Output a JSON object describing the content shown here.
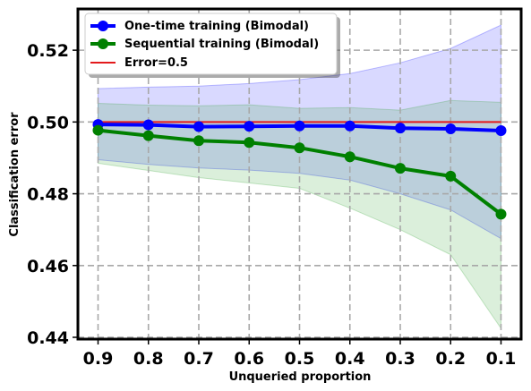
{
  "chart_data": {
    "type": "line",
    "xlabel": "Unqueried proportion",
    "ylabel": "Classification error",
    "x": [
      0.9,
      0.8,
      0.7,
      0.6,
      0.5,
      0.4,
      0.3,
      0.2,
      0.1
    ],
    "x_tick_labels": [
      "0.9",
      "0.8",
      "0.7",
      "0.6",
      "0.5",
      "0.4",
      "0.3",
      "0.2",
      "0.1"
    ],
    "x_reversed": true,
    "xlim": [
      0.94,
      0.06
    ],
    "ylim": [
      0.4395,
      0.5315
    ],
    "y_ticks": [
      0.44,
      0.46,
      0.48,
      0.5,
      0.52
    ],
    "y_tick_labels": [
      "0.44",
      "0.46",
      "0.48",
      "0.50",
      "0.52"
    ],
    "grid": true,
    "legend_position": "top-left",
    "series": [
      {
        "name": "One-time training (Bimodal)",
        "color": "#0000ff",
        "band_color": "#0000ff",
        "values": [
          0.4993,
          0.4992,
          0.4987,
          0.4988,
          0.4989,
          0.4989,
          0.4983,
          0.4981,
          0.4976
        ],
        "upper": [
          0.5093,
          0.5097,
          0.51,
          0.5107,
          0.5118,
          0.5135,
          0.5165,
          0.5205,
          0.527
        ],
        "lower": [
          0.4895,
          0.4882,
          0.4872,
          0.4866,
          0.4857,
          0.4838,
          0.48,
          0.4755,
          0.4675
        ]
      },
      {
        "name": "Sequential training (Bimodal)",
        "color": "#008000",
        "band_color": "#2ca02c",
        "values": [
          0.4977,
          0.4962,
          0.4948,
          0.4943,
          0.4928,
          0.4903,
          0.4871,
          0.4849,
          0.4743
        ],
        "upper": [
          0.5052,
          0.5047,
          0.5045,
          0.5048,
          0.5038,
          0.504,
          0.5033,
          0.506,
          0.5055
        ],
        "lower": [
          0.4885,
          0.4865,
          0.4845,
          0.483,
          0.4815,
          0.476,
          0.47,
          0.463,
          0.4425
        ]
      }
    ],
    "reference_line": {
      "name": "Error=0.5",
      "value": 0.5,
      "color": "#e31a1c"
    }
  }
}
